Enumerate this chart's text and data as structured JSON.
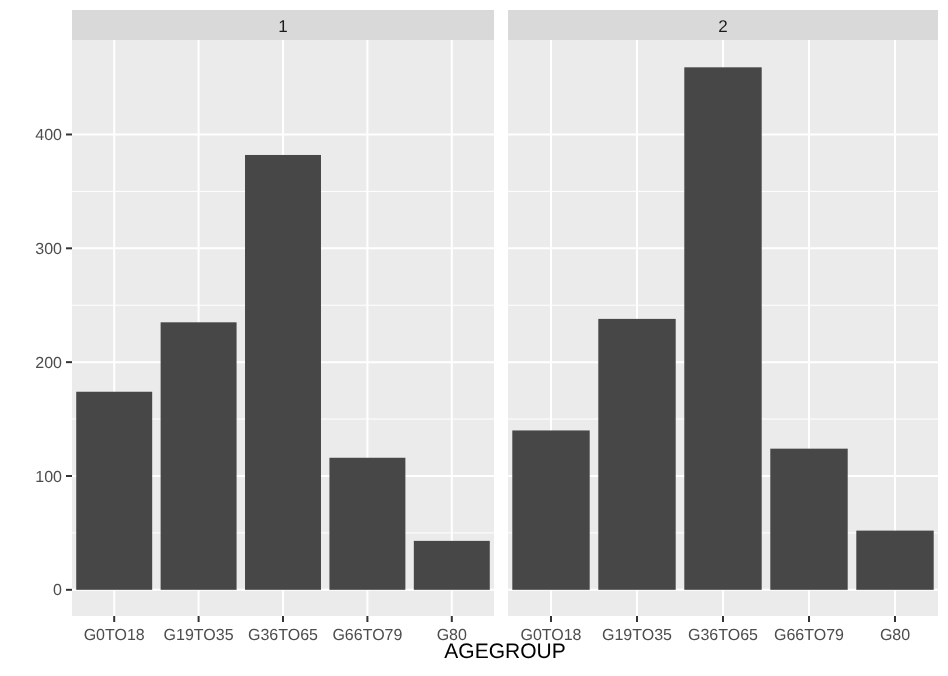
{
  "chart_data": [
    {
      "type": "bar",
      "title": "1",
      "xlabel": "AGEGROUP",
      "categories": [
        "G0TO18",
        "G19TO35",
        "G36TO65",
        "G66TO79",
        "G80"
      ],
      "values": [
        174,
        235,
        382,
        116,
        43
      ],
      "color": "#474747",
      "ylim": [
        -23,
        483
      ],
      "yticks": [
        0,
        100,
        200,
        300,
        400
      ],
      "grid": true
    },
    {
      "type": "bar",
      "title": "2",
      "categories": [
        "G0TO18",
        "G19TO35",
        "G36TO65",
        "G66TO79",
        "G80"
      ],
      "values": [
        140,
        238,
        459,
        124,
        52
      ],
      "color": "#474747",
      "ylim": [
        -23,
        483
      ],
      "yticks": [
        0,
        100,
        200,
        300,
        400
      ],
      "grid": true,
      "tick_labels": "x"
    }
  ]
}
